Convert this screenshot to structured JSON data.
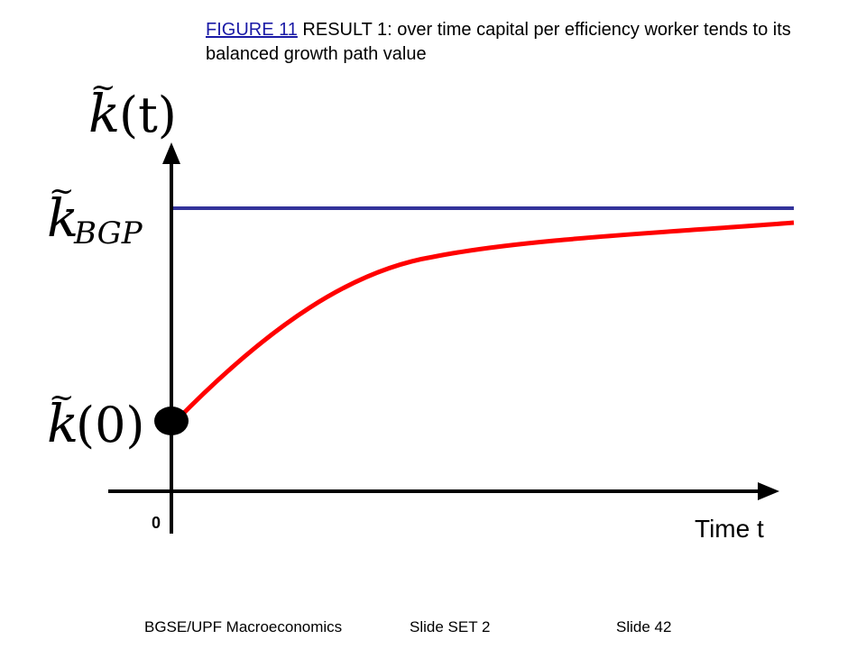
{
  "caption": {
    "link_text": "FIGURE 11",
    "text": " RESULT 1: over time capital per efficiency worker tends to its balanced growth path value"
  },
  "diagram": {
    "y_axis_label": {
      "base": "k",
      "arg": "(t)"
    },
    "bgp_label": {
      "base": "k",
      "subscript": "BGP"
    },
    "initial_label": {
      "base": "k",
      "arg": "(0)"
    },
    "origin_label": "0",
    "x_axis_label": "Time t",
    "tilde": "~",
    "colors": {
      "bgp_line": "#33339a",
      "path_curve": "#ff0000",
      "axes": "#000000"
    }
  },
  "footer": {
    "course": "BGSE/UPF Macroeconomics",
    "set": "Slide SET 2",
    "slide": "Slide 42"
  }
}
